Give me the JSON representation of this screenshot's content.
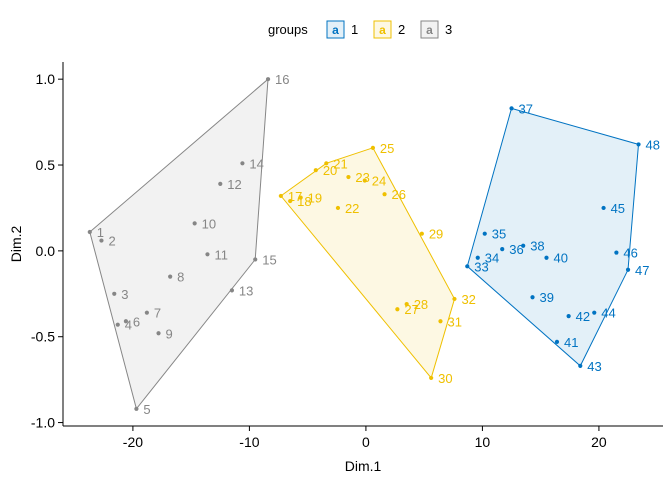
{
  "chart_data": {
    "type": "scatter",
    "title": "",
    "xlabel": "Dim.1",
    "ylabel": "Dim.2",
    "xlim": [
      -26,
      25.5
    ],
    "ylim": [
      -1.02,
      1.1
    ],
    "x_ticks": [
      -20,
      -10,
      0,
      10,
      20
    ],
    "x_tick_labels": [
      "-20",
      "-10",
      "0",
      "10",
      "20"
    ],
    "y_ticks": [
      -1.0,
      -0.5,
      0.0,
      0.5,
      1.0
    ],
    "y_tick_labels": [
      "-1.0",
      "-0.5",
      "0.0",
      "0.5",
      "1.0"
    ],
    "grid": false,
    "legend": {
      "position": "top",
      "title": "groups",
      "key_glyph": "a",
      "entries": [
        "1",
        "2",
        "3"
      ]
    },
    "series": [
      {
        "name": "1",
        "color": "#0073C2",
        "fill": "#0073C2",
        "hull": [
          "33",
          "37",
          "48",
          "47",
          "43"
        ],
        "points": [
          {
            "id": "33",
            "x": 8.7,
            "y": -0.09
          },
          {
            "id": "34",
            "x": 9.6,
            "y": -0.04
          },
          {
            "id": "35",
            "x": 10.2,
            "y": 0.1
          },
          {
            "id": "36",
            "x": 11.7,
            "y": 0.01
          },
          {
            "id": "37",
            "x": 12.5,
            "y": 0.83
          },
          {
            "id": "38",
            "x": 13.5,
            "y": 0.03
          },
          {
            "id": "39",
            "x": 14.3,
            "y": -0.27
          },
          {
            "id": "40",
            "x": 15.5,
            "y": -0.04
          },
          {
            "id": "41",
            "x": 16.4,
            "y": -0.53
          },
          {
            "id": "42",
            "x": 17.4,
            "y": -0.38
          },
          {
            "id": "43",
            "x": 18.4,
            "y": -0.67
          },
          {
            "id": "44",
            "x": 19.6,
            "y": -0.36
          },
          {
            "id": "45",
            "x": 20.4,
            "y": 0.25
          },
          {
            "id": "46",
            "x": 21.5,
            "y": -0.01
          },
          {
            "id": "47",
            "x": 22.5,
            "y": -0.11
          },
          {
            "id": "48",
            "x": 23.4,
            "y": 0.62
          }
        ]
      },
      {
        "name": "2",
        "color": "#EFC000",
        "fill": "#EFC000",
        "hull": [
          "17",
          "21",
          "25",
          "32",
          "30"
        ],
        "points": [
          {
            "id": "17",
            "x": -7.3,
            "y": 0.32
          },
          {
            "id": "18",
            "x": -6.5,
            "y": 0.29
          },
          {
            "id": "19",
            "x": -5.6,
            "y": 0.31
          },
          {
            "id": "20",
            "x": -4.3,
            "y": 0.47
          },
          {
            "id": "21",
            "x": -3.4,
            "y": 0.51
          },
          {
            "id": "22",
            "x": -2.4,
            "y": 0.25
          },
          {
            "id": "23",
            "x": -1.5,
            "y": 0.43
          },
          {
            "id": "24",
            "x": -0.1,
            "y": 0.41
          },
          {
            "id": "25",
            "x": 0.6,
            "y": 0.6
          },
          {
            "id": "26",
            "x": 1.6,
            "y": 0.33
          },
          {
            "id": "27",
            "x": 2.7,
            "y": -0.34
          },
          {
            "id": "28",
            "x": 3.5,
            "y": -0.31
          },
          {
            "id": "29",
            "x": 4.8,
            "y": 0.1
          },
          {
            "id": "30",
            "x": 5.6,
            "y": -0.74
          },
          {
            "id": "31",
            "x": 6.4,
            "y": -0.41
          },
          {
            "id": "32",
            "x": 7.6,
            "y": -0.28
          }
        ]
      },
      {
        "name": "3",
        "color": "#868686",
        "fill": "#868686",
        "hull": [
          "1",
          "16",
          "15",
          "5"
        ],
        "points": [
          {
            "id": "1",
            "x": -23.7,
            "y": 0.11
          },
          {
            "id": "2",
            "x": -22.7,
            "y": 0.06
          },
          {
            "id": "3",
            "x": -21.6,
            "y": -0.25
          },
          {
            "id": "4",
            "x": -21.3,
            "y": -0.43
          },
          {
            "id": "5",
            "x": -19.7,
            "y": -0.92
          },
          {
            "id": "6",
            "x": -20.6,
            "y": -0.41
          },
          {
            "id": "7",
            "x": -18.8,
            "y": -0.36
          },
          {
            "id": "8",
            "x": -16.8,
            "y": -0.15
          },
          {
            "id": "9",
            "x": -17.8,
            "y": -0.48
          },
          {
            "id": "10",
            "x": -14.7,
            "y": 0.16
          },
          {
            "id": "11",
            "x": -13.6,
            "y": -0.02
          },
          {
            "id": "12",
            "x": -12.5,
            "y": 0.39
          },
          {
            "id": "13",
            "x": -11.5,
            "y": -0.23
          },
          {
            "id": "14",
            "x": -10.6,
            "y": 0.51
          },
          {
            "id": "15",
            "x": -9.5,
            "y": -0.05
          },
          {
            "id": "16",
            "x": -8.4,
            "y": 1.0
          }
        ]
      }
    ]
  }
}
